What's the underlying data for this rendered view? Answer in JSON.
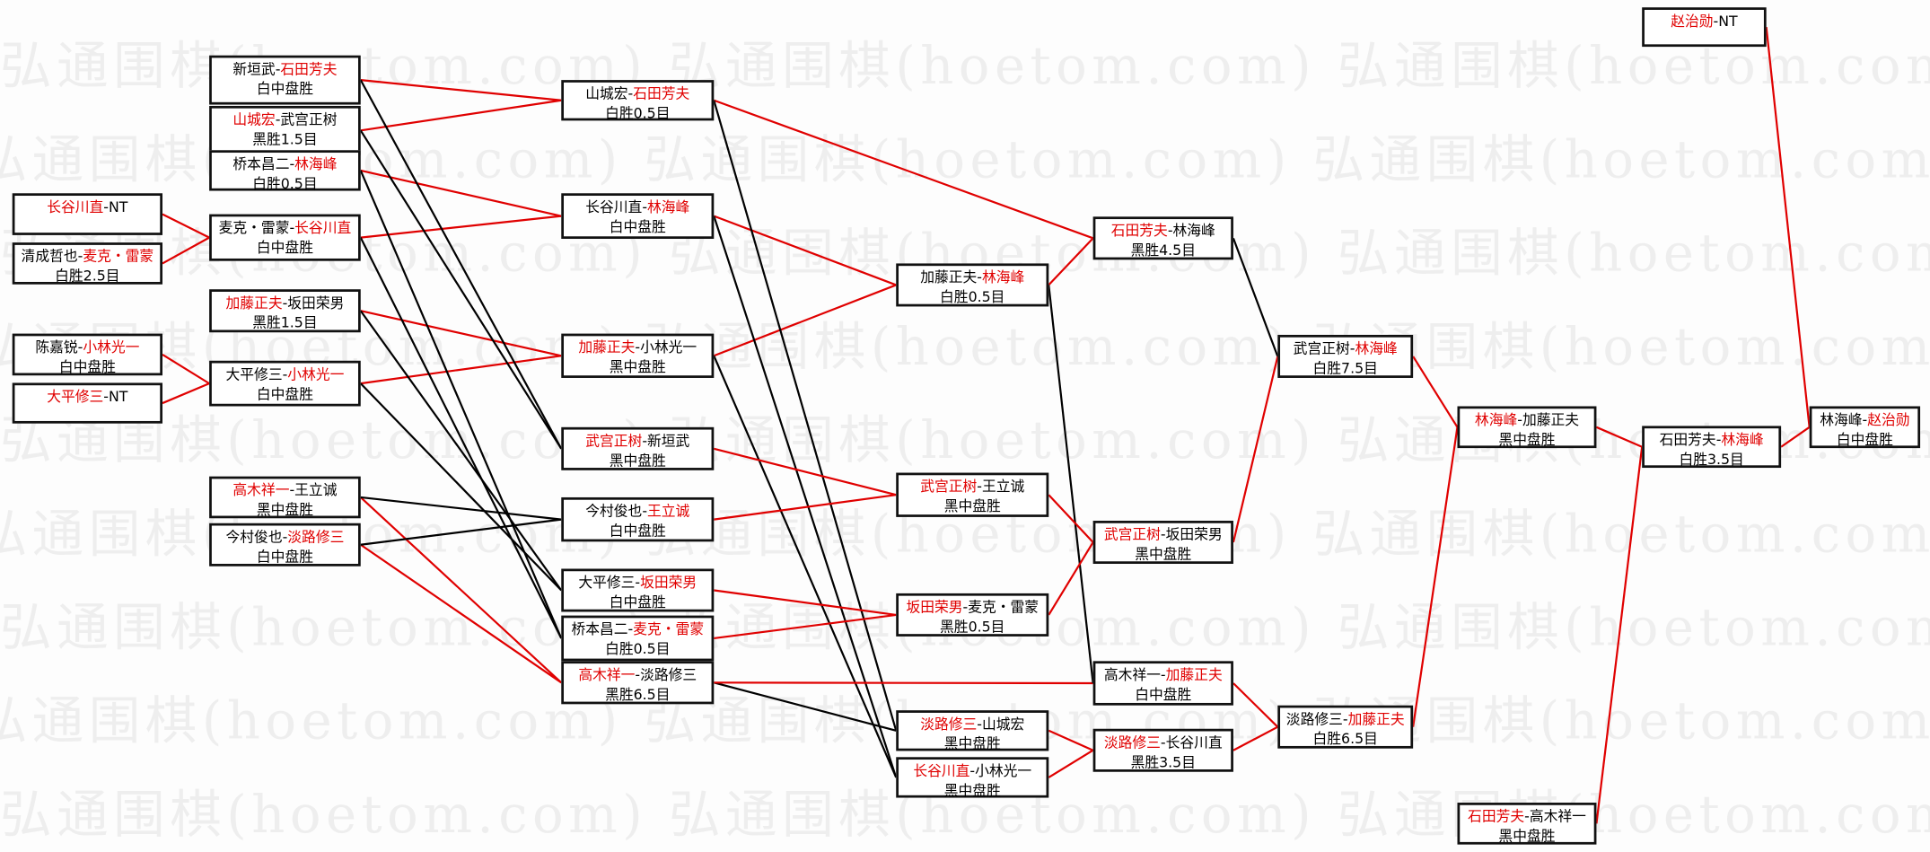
{
  "watermark": "弘通围棋(hoetom.com)",
  "colors": {
    "winner": "#e00000",
    "line_win": "#e00000",
    "line_lose": "#000000",
    "border": "#111111"
  },
  "boxes": {
    "A1": {
      "p1": "长谷川直",
      "p2": "NT",
      "winner": 1,
      "result": ""
    },
    "A2": {
      "p1": "清成哲也",
      "p2": "麦克・雷蒙",
      "winner": 2,
      "result": "白胜2.5目"
    },
    "A3": {
      "p1": "陈嘉锐",
      "p2": "小林光一",
      "winner": 2,
      "result": "白中盘胜"
    },
    "A4": {
      "p1": "大平修三",
      "p2": "NT",
      "winner": 1,
      "result": ""
    },
    "B1": {
      "p1": "新垣武",
      "p2": "石田芳夫",
      "winner": 2,
      "result": "白中盘胜"
    },
    "B2": {
      "p1": "山城宏",
      "p2": "武宫正树",
      "winner": 1,
      "result": "黑胜1.5目"
    },
    "B3": {
      "p1": "桥本昌二",
      "p2": "林海峰",
      "winner": 2,
      "result": "白胜0.5目"
    },
    "B4": {
      "p1": "麦克・雷蒙",
      "p2": "长谷川直",
      "winner": 2,
      "result": "白中盘胜"
    },
    "B5": {
      "p1": "加藤正夫",
      "p2": "坂田荣男",
      "winner": 1,
      "result": "黑胜1.5目"
    },
    "B6": {
      "p1": "大平修三",
      "p2": "小林光一",
      "winner": 2,
      "result": "白中盘胜"
    },
    "B7": {
      "p1": "高木祥一",
      "p2": "王立诚",
      "winner": 1,
      "result": "黑中盘胜"
    },
    "B8": {
      "p1": "今村俊也",
      "p2": "淡路修三",
      "winner": 2,
      "result": "白中盘胜"
    },
    "C1": {
      "p1": "山城宏",
      "p2": "石田芳夫",
      "winner": 2,
      "result": "白胜0.5目"
    },
    "C2": {
      "p1": "长谷川直",
      "p2": "林海峰",
      "winner": 2,
      "result": "白中盘胜"
    },
    "C3": {
      "p1": "加藤正夫",
      "p2": "小林光一",
      "winner": 1,
      "result": "黑中盘胜"
    },
    "C4": {
      "p1": "武宫正树",
      "p2": "新垣武",
      "winner": 1,
      "result": "黑中盘胜"
    },
    "C5": {
      "p1": "今村俊也",
      "p2": "王立诚",
      "winner": 2,
      "result": "白中盘胜"
    },
    "C6": {
      "p1": "大平修三",
      "p2": "坂田荣男",
      "winner": 2,
      "result": "白中盘胜"
    },
    "C7": {
      "p1": "桥本昌二",
      "p2": "麦克・雷蒙",
      "winner": 2,
      "result": "白胜0.5目"
    },
    "C8": {
      "p1": "高木祥一",
      "p2": "淡路修三",
      "winner": 1,
      "result": "黑胜6.5目"
    },
    "D1": {
      "p1": "加藤正夫",
      "p2": "林海峰",
      "winner": 2,
      "result": "白胜0.5目"
    },
    "D2": {
      "p1": "武宫正树",
      "p2": "王立诚",
      "winner": 1,
      "result": "黑中盘胜"
    },
    "D3": {
      "p1": "坂田荣男",
      "p2": "麦克・雷蒙",
      "winner": 1,
      "result": "黑胜0.5目"
    },
    "D4": {
      "p1": "淡路修三",
      "p2": "山城宏",
      "winner": 1,
      "result": "黑中盘胜"
    },
    "D5": {
      "p1": "长谷川直",
      "p2": "小林光一",
      "winner": 1,
      "result": "黑中盘胜"
    },
    "E1": {
      "p1": "石田芳夫",
      "p2": "林海峰",
      "winner": 1,
      "result": "黑胜4.5目"
    },
    "E2": {
      "p1": "武宫正树",
      "p2": "坂田荣男",
      "winner": 1,
      "result": "黑中盘胜"
    },
    "E3": {
      "p1": "高木祥一",
      "p2": "加藤正夫",
      "winner": 2,
      "result": "白中盘胜"
    },
    "E4": {
      "p1": "淡路修三",
      "p2": "长谷川直",
      "winner": 1,
      "result": "黑胜3.5目"
    },
    "F1": {
      "p1": "武宫正树",
      "p2": "林海峰",
      "winner": 2,
      "result": "白胜7.5目"
    },
    "F2": {
      "p1": "淡路修三",
      "p2": "加藤正夫",
      "winner": 2,
      "result": "白胜6.5目"
    },
    "G1": {
      "p1": "林海峰",
      "p2": "加藤正夫",
      "winner": 1,
      "result": "黑中盘胜"
    },
    "G2": {
      "p1": "石田芳夫",
      "p2": "高木祥一",
      "winner": 1,
      "result": "黑中盘胜"
    },
    "H0": {
      "p1": "赵治勋",
      "p2": "NT",
      "winner": 1,
      "result": ""
    },
    "H1": {
      "p1": "石田芳夫",
      "p2": "林海峰",
      "winner": 2,
      "result": "白胜3.5目"
    },
    "I1": {
      "p1": "林海峰",
      "p2": "赵治勋",
      "winner": 2,
      "result": "白中盘胜"
    }
  }
}
